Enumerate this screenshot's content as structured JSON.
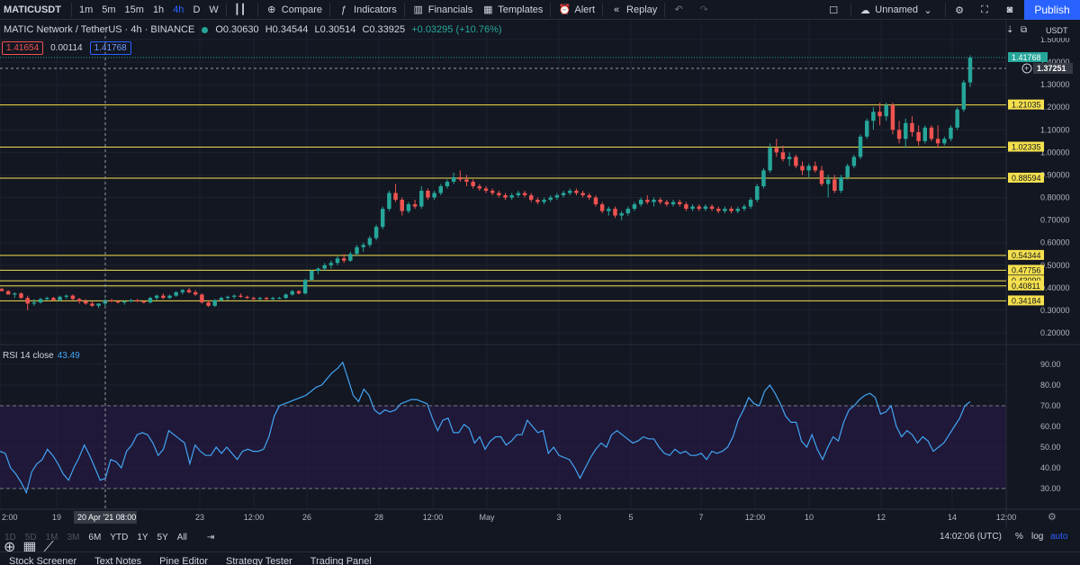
{
  "toolbar": {
    "symbol": "MATICUSDT",
    "timeframes": [
      "1m",
      "5m",
      "15m",
      "1h",
      "4h",
      "D",
      "W"
    ],
    "active_timeframe": "4h",
    "compare": "Compare",
    "indicators": "Indicators",
    "financials": "Financials",
    "templates": "Templates",
    "alert": "Alert",
    "replay": "Replay",
    "layout_name": "Unnamed",
    "publish": "Publish"
  },
  "legend": {
    "title": "MATIC Network / TetherUS · 4h · BINANCE",
    "open": "O0.30630",
    "high": "H0.34544",
    "low": "L0.30514",
    "close": "C0.33925",
    "change": "+0.03295 (+10.76%)",
    "bid": "1.41654",
    "spread": "0.00114",
    "ask": "1.41768"
  },
  "price_axis": {
    "currency": "USDT",
    "ticks": [
      "1.50000",
      "1.40000",
      "1.30000",
      "1.20000",
      "1.10000",
      "1.00000",
      "0.90000",
      "0.80000",
      "0.70000",
      "0.60000",
      "0.50000",
      "0.40000",
      "0.30000",
      "0.20000"
    ],
    "last_price": "1.41768",
    "crosshair_price": "1.37251",
    "level_labels": [
      "1.21035",
      "1.02335",
      "0.88594",
      "0.54344",
      "0.47756",
      "0.43090",
      "0.40811",
      "0.34184"
    ]
  },
  "rsi": {
    "label": "RSI 14 close",
    "value": "43.49",
    "ticks": [
      "90.00",
      "80.00",
      "70.00",
      "60.00",
      "50.00",
      "40.00",
      "30.00"
    ],
    "values": [
      48,
      47,
      40,
      37,
      33,
      28,
      38,
      42,
      44,
      49,
      46,
      42,
      37,
      34,
      40,
      45,
      51,
      46,
      40,
      34,
      35,
      44,
      43,
      40,
      48,
      51,
      56,
      57,
      56,
      52,
      46,
      49,
      58,
      56,
      54,
      52,
      42,
      51,
      48,
      46,
      46,
      50,
      47,
      50,
      47,
      44,
      48,
      49,
      48,
      48,
      49,
      55,
      65,
      70,
      71,
      72,
      73,
      74,
      75,
      77,
      79,
      80,
      83,
      86,
      88,
      91,
      83,
      75,
      72,
      78,
      75,
      68,
      66,
      68,
      67,
      68,
      71,
      72,
      73,
      73,
      72,
      71,
      64,
      58,
      63,
      64,
      57,
      57,
      61,
      59,
      52,
      55,
      49,
      53,
      55,
      55,
      51,
      53,
      56,
      56,
      63,
      60,
      57,
      58,
      47,
      50,
      46,
      45,
      44,
      40,
      35,
      40,
      45,
      49,
      52,
      50,
      56,
      58,
      56,
      54,
      52,
      53,
      55,
      54,
      54,
      50,
      47,
      46,
      49,
      47,
      48,
      46,
      46,
      47,
      44,
      48,
      47,
      48,
      50,
      55,
      63,
      68,
      74,
      71,
      70,
      77,
      80,
      76,
      71,
      65,
      62,
      62,
      53,
      50,
      56,
      49,
      44,
      50,
      55,
      53,
      62,
      68,
      70,
      73,
      75,
      76,
      74,
      66,
      67,
      70,
      60,
      55,
      58,
      56,
      52,
      55,
      53,
      48,
      50,
      52,
      56,
      60,
      64,
      70,
      72
    ]
  },
  "chart_data": {
    "type": "candlestick",
    "symbol": "MATICUSDT",
    "timeframe": "4h",
    "ylim": [
      0.2,
      1.5
    ],
    "horizontal_levels": [
      1.21035,
      1.02335,
      0.88594,
      0.54344,
      0.47756,
      0.4309,
      0.40811,
      0.34184
    ],
    "candles": [
      [
        0.395,
        0.4,
        0.385,
        0.385
      ],
      [
        0.385,
        0.39,
        0.37,
        0.37
      ],
      [
        0.37,
        0.38,
        0.355,
        0.375
      ],
      [
        0.375,
        0.38,
        0.35,
        0.355
      ],
      [
        0.355,
        0.365,
        0.3,
        0.33
      ],
      [
        0.33,
        0.35,
        0.32,
        0.335
      ],
      [
        0.335,
        0.355,
        0.33,
        0.35
      ],
      [
        0.35,
        0.36,
        0.345,
        0.355
      ],
      [
        0.355,
        0.36,
        0.34,
        0.345
      ],
      [
        0.345,
        0.365,
        0.34,
        0.36
      ],
      [
        0.36,
        0.37,
        0.35,
        0.365
      ],
      [
        0.365,
        0.37,
        0.345,
        0.35
      ],
      [
        0.35,
        0.355,
        0.33,
        0.34
      ],
      [
        0.34,
        0.35,
        0.325,
        0.33
      ],
      [
        0.33,
        0.34,
        0.315,
        0.32
      ],
      [
        0.32,
        0.33,
        0.31,
        0.33
      ],
      [
        0.33,
        0.35,
        0.32,
        0.345
      ],
      [
        0.345,
        0.35,
        0.335,
        0.34
      ],
      [
        0.34,
        0.345,
        0.33,
        0.335
      ],
      [
        0.335,
        0.345,
        0.325,
        0.34
      ],
      [
        0.34,
        0.35,
        0.335,
        0.345
      ],
      [
        0.345,
        0.35,
        0.335,
        0.34
      ],
      [
        0.34,
        0.345,
        0.33,
        0.335
      ],
      [
        0.335,
        0.36,
        0.33,
        0.355
      ],
      [
        0.355,
        0.37,
        0.345,
        0.365
      ],
      [
        0.365,
        0.375,
        0.35,
        0.355
      ],
      [
        0.355,
        0.37,
        0.35,
        0.365
      ],
      [
        0.365,
        0.385,
        0.36,
        0.38
      ],
      [
        0.38,
        0.395,
        0.37,
        0.39
      ],
      [
        0.39,
        0.4,
        0.375,
        0.38
      ],
      [
        0.38,
        0.39,
        0.365,
        0.37
      ],
      [
        0.37,
        0.375,
        0.33,
        0.335
      ],
      [
        0.335,
        0.345,
        0.315,
        0.32
      ],
      [
        0.32,
        0.35,
        0.315,
        0.345
      ],
      [
        0.345,
        0.36,
        0.34,
        0.355
      ],
      [
        0.355,
        0.365,
        0.345,
        0.36
      ],
      [
        0.36,
        0.37,
        0.35,
        0.365
      ],
      [
        0.365,
        0.375,
        0.355,
        0.36
      ],
      [
        0.36,
        0.365,
        0.35,
        0.355
      ],
      [
        0.355,
        0.36,
        0.345,
        0.35
      ],
      [
        0.35,
        0.36,
        0.345,
        0.355
      ],
      [
        0.355,
        0.36,
        0.345,
        0.35
      ],
      [
        0.35,
        0.36,
        0.345,
        0.355
      ],
      [
        0.355,
        0.36,
        0.35,
        0.355
      ],
      [
        0.355,
        0.375,
        0.35,
        0.37
      ],
      [
        0.37,
        0.39,
        0.365,
        0.385
      ],
      [
        0.385,
        0.39,
        0.37,
        0.375
      ],
      [
        0.375,
        0.44,
        0.37,
        0.435
      ],
      [
        0.435,
        0.48,
        0.43,
        0.475
      ],
      [
        0.475,
        0.49,
        0.46,
        0.485
      ],
      [
        0.485,
        0.51,
        0.475,
        0.5
      ],
      [
        0.5,
        0.52,
        0.485,
        0.51
      ],
      [
        0.51,
        0.54,
        0.5,
        0.53
      ],
      [
        0.53,
        0.55,
        0.51,
        0.52
      ],
      [
        0.52,
        0.56,
        0.515,
        0.55
      ],
      [
        0.55,
        0.59,
        0.54,
        0.58
      ],
      [
        0.58,
        0.6,
        0.56,
        0.59
      ],
      [
        0.59,
        0.63,
        0.58,
        0.62
      ],
      [
        0.62,
        0.68,
        0.61,
        0.67
      ],
      [
        0.67,
        0.76,
        0.66,
        0.75
      ],
      [
        0.75,
        0.83,
        0.74,
        0.82
      ],
      [
        0.82,
        0.86,
        0.78,
        0.79
      ],
      [
        0.79,
        0.8,
        0.72,
        0.74
      ],
      [
        0.74,
        0.78,
        0.73,
        0.77
      ],
      [
        0.77,
        0.79,
        0.75,
        0.76
      ],
      [
        0.76,
        0.85,
        0.75,
        0.83
      ],
      [
        0.83,
        0.84,
        0.79,
        0.8
      ],
      [
        0.8,
        0.83,
        0.79,
        0.82
      ],
      [
        0.82,
        0.86,
        0.81,
        0.85
      ],
      [
        0.85,
        0.88,
        0.84,
        0.87
      ],
      [
        0.87,
        0.91,
        0.86,
        0.89
      ],
      [
        0.89,
        0.92,
        0.87,
        0.88
      ],
      [
        0.88,
        0.9,
        0.85,
        0.87
      ],
      [
        0.87,
        0.88,
        0.84,
        0.85
      ],
      [
        0.85,
        0.86,
        0.83,
        0.84
      ],
      [
        0.84,
        0.85,
        0.82,
        0.83
      ],
      [
        0.83,
        0.84,
        0.81,
        0.82
      ],
      [
        0.82,
        0.83,
        0.8,
        0.81
      ],
      [
        0.81,
        0.82,
        0.79,
        0.8
      ],
      [
        0.8,
        0.82,
        0.79,
        0.81
      ],
      [
        0.81,
        0.83,
        0.8,
        0.82
      ],
      [
        0.82,
        0.83,
        0.8,
        0.81
      ],
      [
        0.81,
        0.82,
        0.78,
        0.79
      ],
      [
        0.79,
        0.8,
        0.77,
        0.78
      ],
      [
        0.78,
        0.8,
        0.77,
        0.79
      ],
      [
        0.79,
        0.81,
        0.78,
        0.8
      ],
      [
        0.8,
        0.82,
        0.79,
        0.81
      ],
      [
        0.81,
        0.83,
        0.8,
        0.82
      ],
      [
        0.82,
        0.84,
        0.81,
        0.83
      ],
      [
        0.83,
        0.84,
        0.81,
        0.82
      ],
      [
        0.82,
        0.83,
        0.8,
        0.81
      ],
      [
        0.81,
        0.82,
        0.79,
        0.8
      ],
      [
        0.8,
        0.81,
        0.76,
        0.77
      ],
      [
        0.77,
        0.78,
        0.73,
        0.74
      ],
      [
        0.74,
        0.76,
        0.72,
        0.75
      ],
      [
        0.75,
        0.76,
        0.71,
        0.72
      ],
      [
        0.72,
        0.74,
        0.7,
        0.73
      ],
      [
        0.73,
        0.76,
        0.72,
        0.75
      ],
      [
        0.75,
        0.78,
        0.74,
        0.77
      ],
      [
        0.77,
        0.8,
        0.76,
        0.79
      ],
      [
        0.79,
        0.81,
        0.77,
        0.78
      ],
      [
        0.78,
        0.8,
        0.76,
        0.79
      ],
      [
        0.79,
        0.8,
        0.77,
        0.78
      ],
      [
        0.78,
        0.79,
        0.76,
        0.77
      ],
      [
        0.77,
        0.79,
        0.76,
        0.78
      ],
      [
        0.78,
        0.79,
        0.76,
        0.77
      ],
      [
        0.77,
        0.78,
        0.74,
        0.75
      ],
      [
        0.75,
        0.77,
        0.74,
        0.76
      ],
      [
        0.76,
        0.77,
        0.74,
        0.75
      ],
      [
        0.75,
        0.77,
        0.74,
        0.76
      ],
      [
        0.76,
        0.77,
        0.74,
        0.75
      ],
      [
        0.75,
        0.76,
        0.73,
        0.74
      ],
      [
        0.74,
        0.76,
        0.73,
        0.75
      ],
      [
        0.75,
        0.76,
        0.73,
        0.74
      ],
      [
        0.74,
        0.76,
        0.73,
        0.75
      ],
      [
        0.75,
        0.77,
        0.74,
        0.76
      ],
      [
        0.76,
        0.8,
        0.75,
        0.79
      ],
      [
        0.79,
        0.86,
        0.78,
        0.85
      ],
      [
        0.85,
        0.93,
        0.84,
        0.92
      ],
      [
        0.92,
        1.04,
        0.91,
        1.02
      ],
      [
        1.02,
        1.06,
        0.98,
        1.0
      ],
      [
        1.0,
        1.03,
        0.96,
        0.97
      ],
      [
        0.97,
        1.0,
        0.94,
        0.98
      ],
      [
        0.98,
        0.99,
        0.93,
        0.94
      ],
      [
        0.94,
        0.96,
        0.9,
        0.92
      ],
      [
        0.92,
        0.95,
        0.89,
        0.94
      ],
      [
        0.94,
        0.96,
        0.91,
        0.92
      ],
      [
        0.92,
        0.94,
        0.85,
        0.86
      ],
      [
        0.86,
        0.9,
        0.8,
        0.88
      ],
      [
        0.88,
        0.9,
        0.82,
        0.83
      ],
      [
        0.83,
        0.9,
        0.82,
        0.89
      ],
      [
        0.89,
        0.95,
        0.88,
        0.94
      ],
      [
        0.94,
        0.99,
        0.93,
        0.98
      ],
      [
        0.98,
        1.08,
        0.97,
        1.07
      ],
      [
        1.07,
        1.15,
        1.06,
        1.14
      ],
      [
        1.14,
        1.2,
        1.1,
        1.18
      ],
      [
        1.18,
        1.22,
        1.12,
        1.16
      ],
      [
        1.16,
        1.22,
        1.14,
        1.21
      ],
      [
        1.21,
        1.22,
        1.08,
        1.1
      ],
      [
        1.1,
        1.14,
        1.04,
        1.06
      ],
      [
        1.06,
        1.15,
        1.02,
        1.13
      ],
      [
        1.13,
        1.16,
        1.07,
        1.09
      ],
      [
        1.09,
        1.12,
        1.03,
        1.05
      ],
      [
        1.05,
        1.12,
        1.04,
        1.11
      ],
      [
        1.11,
        1.12,
        1.05,
        1.06
      ],
      [
        1.06,
        1.12,
        1.02,
        1.04
      ],
      [
        1.04,
        1.07,
        1.03,
        1.06
      ],
      [
        1.06,
        1.12,
        1.05,
        1.11
      ],
      [
        1.11,
        1.2,
        1.1,
        1.19
      ],
      [
        1.19,
        1.32,
        1.18,
        1.31
      ],
      [
        1.31,
        1.43,
        1.29,
        1.42
      ]
    ]
  },
  "time_axis": {
    "labels": [
      "2:00",
      "19",
      "20 Apr '21  08:00",
      "23",
      "12:00",
      "26",
      "28",
      "12:00",
      "May",
      "3",
      "5",
      "7",
      "12:00",
      "10",
      "12",
      "14",
      "12:00"
    ]
  },
  "range_bar": {
    "ranges": [
      "1D",
      "5D",
      "1M",
      "3M",
      "6M",
      "YTD",
      "1Y",
      "5Y",
      "All"
    ],
    "clock": "14:02:06 (UTC)",
    "percent": "%",
    "log": "log",
    "auto": "auto"
  },
  "bottom_tabs": [
    "Stock Screener",
    "Text Notes",
    "Pine Editor",
    "Strategy Tester",
    "Trading Panel"
  ],
  "colors": {
    "up": "#26a69a",
    "down": "#ef5350",
    "level": "#f4e04d",
    "rsi": "#42a5f5",
    "accent": "#2962ff"
  }
}
